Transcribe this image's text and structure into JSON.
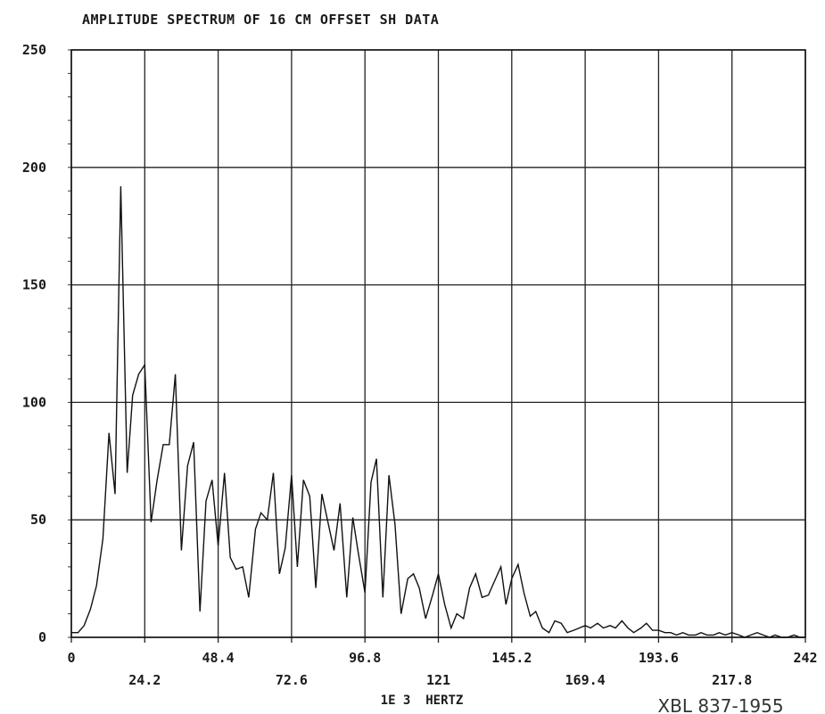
{
  "chart_data": {
    "type": "line",
    "title": "AMPLITUDE SPECTRUM OF 16 CM OFFSET SH DATA",
    "xlabel": "1E 3  HERTZ",
    "ylabel": "",
    "xlim": [
      0,
      242
    ],
    "ylim": [
      0,
      250
    ],
    "grid": true,
    "x_ticks": [
      {
        "value": 0,
        "label": "0",
        "row": "top"
      },
      {
        "value": 24.2,
        "label": "24.2",
        "row": "bottom"
      },
      {
        "value": 48.4,
        "label": "48.4",
        "row": "top"
      },
      {
        "value": 72.6,
        "label": "72.6",
        "row": "bottom"
      },
      {
        "value": 96.8,
        "label": "96.8",
        "row": "top"
      },
      {
        "value": 121,
        "label": "121",
        "row": "bottom"
      },
      {
        "value": 145.2,
        "label": "145.2",
        "row": "top"
      },
      {
        "value": 169.4,
        "label": "169.4",
        "row": "bottom"
      },
      {
        "value": 193.6,
        "label": "193.6",
        "row": "top"
      },
      {
        "value": 217.8,
        "label": "217.8",
        "row": "bottom"
      },
      {
        "value": 242,
        "label": "242",
        "row": "top"
      }
    ],
    "y_ticks": [
      {
        "value": 0,
        "label": "0"
      },
      {
        "value": 50,
        "label": "50"
      },
      {
        "value": 100,
        "label": "100"
      },
      {
        "value": 150,
        "label": "150"
      },
      {
        "value": 200,
        "label": "200"
      },
      {
        "value": 250,
        "label": "250"
      }
    ],
    "series": [
      {
        "x": [
          0,
          2.2,
          4.2,
          6.3,
          8.3,
          10.4,
          12.4,
          14.4,
          16.3,
          18.4,
          20.2,
          22.2,
          24.2,
          26.3,
          28.3,
          30.3,
          32.3,
          34.3,
          36.3,
          38.3,
          40.3,
          42.4,
          44.4,
          46.4,
          48.4,
          50.5,
          52.4,
          54.3,
          56.5,
          58.5,
          60.7,
          62.5,
          64.6,
          66.6,
          68.6,
          70.5,
          72.6,
          74.5,
          76.5,
          78.6,
          80.6,
          82.6,
          84.6,
          86.6,
          88.6,
          90.8,
          92.8,
          94.6,
          96.8,
          98.8,
          100.6,
          102.7,
          104.7,
          106.7,
          108.7,
          110.9,
          112.8,
          114.7,
          116.8,
          119.1,
          121,
          123.1,
          125.2,
          127.1,
          129.3,
          131.3,
          133.3,
          135.4,
          137.5,
          139.2,
          141.6,
          143.3,
          145.2,
          147.3,
          149.2,
          151.3,
          153.1,
          155.3,
          157.5,
          159.4,
          161.5,
          163.5,
          165.6,
          167.5,
          169.4,
          171.2,
          173.5,
          175.4,
          177.6,
          179.4,
          181.5,
          183.5,
          185.4,
          187.8,
          189.6,
          191.6,
          193.6,
          195.7,
          197.6,
          199.5,
          201.6,
          203.5,
          205.8,
          207.6,
          209.6,
          211.7,
          213.6,
          215.6,
          217.8,
          220.1,
          222,
          224,
          226.1,
          228.1,
          230.2,
          232,
          234.2,
          236.1,
          238.3,
          240.2,
          242
        ],
        "y": [
          2,
          2,
          5,
          12,
          22,
          42,
          87,
          61,
          192,
          70,
          103,
          112,
          116,
          49,
          67,
          82,
          82,
          112,
          37,
          73,
          83,
          11,
          58,
          67,
          39,
          70,
          34,
          29,
          30,
          17,
          46,
          53,
          50,
          70,
          27,
          38,
          69,
          30,
          67,
          60,
          21,
          61,
          49,
          37,
          57,
          17,
          51,
          36,
          19,
          66,
          76,
          17,
          69,
          48,
          10,
          25,
          27,
          21,
          8,
          18,
          27,
          14,
          4,
          10,
          8,
          21,
          27,
          17,
          18,
          23,
          30,
          14,
          25,
          31,
          19,
          9,
          11,
          4,
          2,
          7,
          6,
          2,
          3,
          4,
          5,
          4,
          6,
          4,
          5,
          4,
          7,
          4,
          2,
          4,
          6,
          3,
          3,
          2,
          2,
          1,
          2,
          1,
          1,
          2,
          1,
          1,
          2,
          1,
          2,
          1,
          0,
          1,
          2,
          1,
          0,
          1,
          0,
          0,
          1,
          0,
          0
        ]
      }
    ]
  },
  "annotations": {
    "stamp": "XBL 837-1955"
  }
}
